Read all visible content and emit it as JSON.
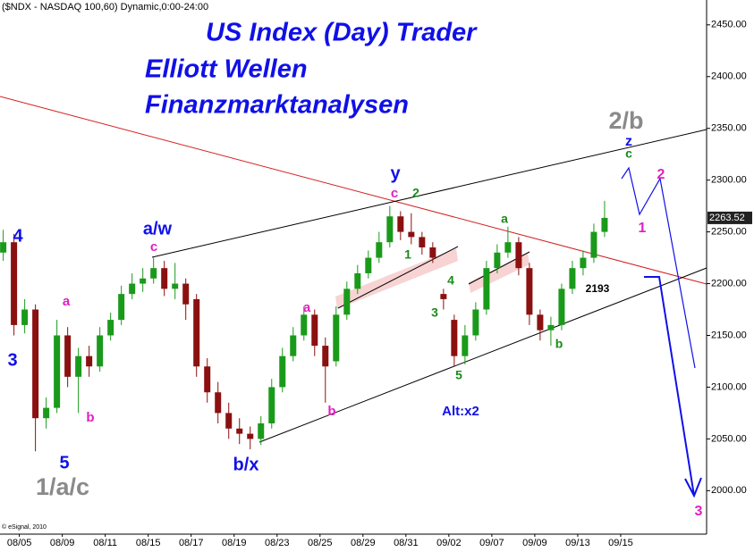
{
  "chart_data": {
    "type": "candlestick",
    "header": "($NDX - NASDAQ 100,60) Dynamic,0:00-24:00",
    "title": "US Index (Day) Trader",
    "subtitle": "Elliott Wellen",
    "subtitle2": "Finanzmarktanalysen",
    "credit": "© eSignal, 2010",
    "up_color": "#1a9a1a",
    "down_color": "#8b1010",
    "x": [
      -0.75,
      -0.25,
      0.25,
      0.75,
      1.25,
      1.75,
      2.25,
      2.75,
      3.25,
      3.75,
      4.25,
      4.75,
      5.25,
      5.75,
      6.25,
      6.75,
      7.25,
      7.75,
      8.25,
      8.75,
      9.25,
      9.75,
      10.25,
      10.75,
      11.25,
      11.75,
      12.25,
      12.75,
      13.25,
      13.75,
      14.25,
      14.75,
      15.25,
      15.75,
      16.25,
      16.75,
      17.25,
      17.75,
      18.25,
      18.75,
      19.25,
      19.75,
      20.25,
      20.75,
      21.25,
      21.75,
      22.25,
      22.75,
      23.25,
      23.75,
      24.25,
      24.75,
      25.25,
      25.75,
      26.25,
      26.75,
      27.25
    ],
    "open": [
      2230,
      2240,
      2160,
      2175,
      2070,
      2080,
      2150,
      2110,
      2130,
      2120,
      2150,
      2165,
      2190,
      2200,
      2205,
      2215,
      2195,
      2200,
      2185,
      2120,
      2095,
      2075,
      2060,
      2055,
      2050,
      2065,
      2100,
      2130,
      2150,
      2170,
      2140,
      2125,
      2170,
      2195,
      2210,
      2225,
      2240,
      2265,
      2250,
      2245,
      2235,
      2190,
      2165,
      2130,
      2150,
      2175,
      2215,
      2230,
      2240,
      2215,
      2170,
      2155,
      2160,
      2195,
      2215,
      2225,
      2250
    ],
    "high": [
      2252,
      2248,
      2185,
      2180,
      2090,
      2165,
      2158,
      2138,
      2140,
      2158,
      2172,
      2198,
      2210,
      2215,
      2225,
      2222,
      2220,
      2205,
      2190,
      2128,
      2105,
      2085,
      2070,
      2062,
      2072,
      2108,
      2138,
      2158,
      2178,
      2175,
      2148,
      2178,
      2202,
      2218,
      2232,
      2250,
      2275,
      2270,
      2268,
      2250,
      2240,
      2195,
      2170,
      2160,
      2182,
      2222,
      2238,
      2255,
      2245,
      2220,
      2175,
      2168,
      2200,
      2222,
      2232,
      2258,
      2280
    ],
    "low": [
      2222,
      2150,
      2152,
      2038,
      2060,
      2075,
      2100,
      2075,
      2110,
      2115,
      2145,
      2160,
      2185,
      2192,
      2200,
      2188,
      2185,
      2165,
      2110,
      2085,
      2065,
      2050,
      2045,
      2040,
      2044,
      2060,
      2095,
      2125,
      2145,
      2130,
      2085,
      2120,
      2165,
      2190,
      2205,
      2220,
      2235,
      2242,
      2238,
      2228,
      2220,
      2175,
      2120,
      2122,
      2145,
      2170,
      2210,
      2225,
      2208,
      2160,
      2145,
      2140,
      2155,
      2190,
      2208,
      2220,
      2245
    ],
    "close": [
      2240,
      2160,
      2175,
      2070,
      2080,
      2150,
      2110,
      2130,
      2120,
      2150,
      2165,
      2190,
      2200,
      2205,
      2215,
      2195,
      2200,
      2180,
      2120,
      2095,
      2075,
      2060,
      2055,
      2050,
      2065,
      2100,
      2130,
      2150,
      2170,
      2140,
      2120,
      2170,
      2195,
      2210,
      2225,
      2240,
      2265,
      2250,
      2245,
      2235,
      2225,
      2185,
      2130,
      2150,
      2175,
      2215,
      2230,
      2240,
      2215,
      2170,
      2155,
      2160,
      2195,
      2215,
      2225,
      2250,
      2263.52
    ],
    "last_price": 2263.52,
    "xlim": [
      -0.9,
      32
    ],
    "xticks": [
      {
        "value": 0,
        "label": "08/05"
      },
      {
        "value": 2,
        "label": "08/09"
      },
      {
        "value": 4,
        "label": "08/11"
      },
      {
        "value": 6,
        "label": "08/15"
      },
      {
        "value": 8,
        "label": "08/17"
      },
      {
        "value": 10,
        "label": "08/19"
      },
      {
        "value": 12,
        "label": "08/23"
      },
      {
        "value": 14,
        "label": "08/25"
      },
      {
        "value": 16,
        "label": "08/29"
      },
      {
        "value": 18,
        "label": "08/31"
      },
      {
        "value": 20,
        "label": "09/02"
      },
      {
        "value": 22,
        "label": "09/07"
      },
      {
        "value": 24,
        "label": "09/09"
      },
      {
        "value": 26,
        "label": "09/13"
      },
      {
        "value": 28,
        "label": "09/15"
      }
    ],
    "ylim": [
      1958,
      2474
    ],
    "yticks": [
      {
        "value": 2000,
        "label": "2000.00"
      },
      {
        "value": 2050,
        "label": "2050.00"
      },
      {
        "value": 2100,
        "label": "2100.00"
      },
      {
        "value": 2150,
        "label": "2150.00"
      },
      {
        "value": 2200,
        "label": "2200.00"
      },
      {
        "value": 2250,
        "label": "2250.00"
      },
      {
        "value": 2300,
        "label": "2300.00"
      },
      {
        "value": 2350,
        "label": "2350.00"
      },
      {
        "value": 2400,
        "label": "2400.00"
      },
      {
        "value": 2450,
        "label": "2450.00"
      }
    ],
    "grid": false,
    "annotations": [
      {
        "text": "4",
        "color": "#1010e8"
      },
      {
        "text": "3",
        "color": "#1010e8"
      },
      {
        "text": "5",
        "color": "#1010e8"
      },
      {
        "text": "1/a/c",
        "color": "#8a8a8a"
      },
      {
        "text": "a",
        "color": "#e020c0"
      },
      {
        "text": "b",
        "color": "#e020c0"
      },
      {
        "text": "a/w",
        "color": "#1010e8"
      },
      {
        "text": "c",
        "color": "#e020c0"
      },
      {
        "text": "b/x",
        "color": "#1010e8"
      },
      {
        "text": "a",
        "color": "#e020c0"
      },
      {
        "text": "b",
        "color": "#e020c0"
      },
      {
        "text": "y",
        "color": "#1010e8"
      },
      {
        "text": "c",
        "color": "#e020c0"
      },
      {
        "text": "2",
        "color": "#1a8a1a"
      },
      {
        "text": "1",
        "color": "#1a8a1a"
      },
      {
        "text": "4",
        "color": "#1a8a1a"
      },
      {
        "text": "3",
        "color": "#1a8a1a"
      },
      {
        "text": "5",
        "color": "#1a8a1a"
      },
      {
        "text": "Alt:x2",
        "color": "#1010e8"
      },
      {
        "text": "a",
        "color": "#1a8a1a"
      },
      {
        "text": "b",
        "color": "#1a8a1a"
      },
      {
        "text": "2193",
        "color": "#000000"
      },
      {
        "text": "2/b",
        "color": "#8a8a8a"
      },
      {
        "text": "z",
        "color": "#1010e8"
      },
      {
        "text": "c",
        "color": "#1a8a1a"
      },
      {
        "text": "2",
        "color": "#e020c0"
      },
      {
        "text": "1",
        "color": "#e020c0"
      },
      {
        "text": "3",
        "color": "#e020c0"
      }
    ]
  }
}
